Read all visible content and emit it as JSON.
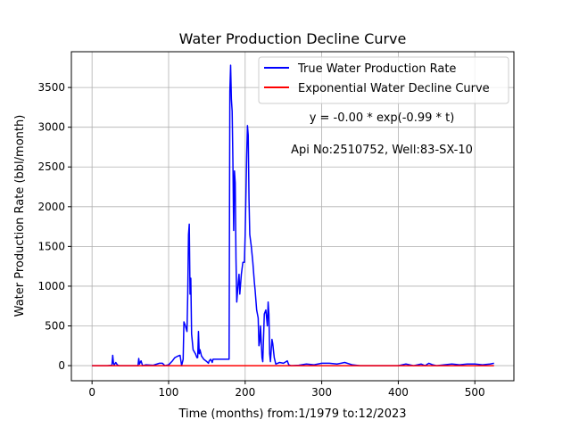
{
  "chart_data": {
    "type": "line",
    "title": "Water Production Decline Curve",
    "xlabel": "Time (months) from:1/1979 to:12/2023",
    "ylabel": "Water Production Rate (bbl/month)",
    "xlim": [
      -27,
      551
    ],
    "ylim": [
      -190,
      3950
    ],
    "xticks": [
      0,
      100,
      200,
      300,
      400,
      500
    ],
    "yticks": [
      0,
      500,
      1000,
      1500,
      2000,
      2500,
      3000,
      3500
    ],
    "grid": true,
    "legend_position": "top-right",
    "annotations": [
      "y = -0.00 * exp(-0.99 * t)",
      "Api No:2510752, Well:83-SX-10"
    ],
    "series": [
      {
        "name": "True Water Production Rate",
        "color": "#0000ff",
        "points": [
          [
            0,
            0
          ],
          [
            10,
            0
          ],
          [
            20,
            0
          ],
          [
            26,
            5
          ],
          [
            27,
            130
          ],
          [
            28,
            30
          ],
          [
            29,
            10
          ],
          [
            31,
            40
          ],
          [
            33,
            10
          ],
          [
            35,
            0
          ],
          [
            50,
            0
          ],
          [
            60,
            0
          ],
          [
            61,
            90
          ],
          [
            62,
            20
          ],
          [
            64,
            60
          ],
          [
            66,
            0
          ],
          [
            70,
            10
          ],
          [
            80,
            5
          ],
          [
            88,
            30
          ],
          [
            92,
            30
          ],
          [
            95,
            0
          ],
          [
            100,
            10
          ],
          [
            105,
            60
          ],
          [
            108,
            100
          ],
          [
            112,
            120
          ],
          [
            115,
            130
          ],
          [
            117,
            0
          ],
          [
            119,
            80
          ],
          [
            120,
            550
          ],
          [
            122,
            500
          ],
          [
            124,
            430
          ],
          [
            125,
            900
          ],
          [
            126,
            1650
          ],
          [
            127,
            1780
          ],
          [
            128,
            900
          ],
          [
            129,
            1100
          ],
          [
            130,
            400
          ],
          [
            132,
            200
          ],
          [
            135,
            150
          ],
          [
            137,
            100
          ],
          [
            138,
            100
          ],
          [
            139,
            430
          ],
          [
            140,
            150
          ],
          [
            141,
            200
          ],
          [
            143,
            120
          ],
          [
            146,
            80
          ],
          [
            150,
            50
          ],
          [
            152,
            30
          ],
          [
            153,
            60
          ],
          [
            155,
            80
          ],
          [
            157,
            40
          ],
          [
            158,
            80
          ],
          [
            162,
            80
          ],
          [
            165,
            80
          ],
          [
            170,
            80
          ],
          [
            175,
            80
          ],
          [
            179,
            80
          ],
          [
            180,
            3450
          ],
          [
            181,
            3780
          ],
          [
            182,
            3350
          ],
          [
            183,
            3200
          ],
          [
            184,
            2550
          ],
          [
            185,
            1700
          ],
          [
            186,
            2450
          ],
          [
            187,
            2300
          ],
          [
            188,
            1350
          ],
          [
            189,
            800
          ],
          [
            191,
            1050
          ],
          [
            192,
            1150
          ],
          [
            193,
            900
          ],
          [
            195,
            1150
          ],
          [
            197,
            1300
          ],
          [
            199,
            1300
          ],
          [
            200,
            1650
          ],
          [
            202,
            2650
          ],
          [
            203,
            3020
          ],
          [
            204,
            2900
          ],
          [
            205,
            2100
          ],
          [
            206,
            1650
          ],
          [
            208,
            1500
          ],
          [
            210,
            1300
          ],
          [
            212,
            1050
          ],
          [
            213,
            950
          ],
          [
            215,
            700
          ],
          [
            217,
            600
          ],
          [
            218,
            250
          ],
          [
            219,
            300
          ],
          [
            220,
            500
          ],
          [
            222,
            100
          ],
          [
            223,
            50
          ],
          [
            225,
            650
          ],
          [
            227,
            700
          ],
          [
            229,
            500
          ],
          [
            230,
            800
          ],
          [
            231,
            650
          ],
          [
            232,
            150
          ],
          [
            233,
            50
          ],
          [
            235,
            330
          ],
          [
            236,
            280
          ],
          [
            238,
            100
          ],
          [
            240,
            20
          ],
          [
            245,
            40
          ],
          [
            250,
            30
          ],
          [
            255,
            60
          ],
          [
            257,
            10
          ],
          [
            260,
            0
          ],
          [
            270,
            5
          ],
          [
            280,
            20
          ],
          [
            290,
            10
          ],
          [
            300,
            30
          ],
          [
            310,
            30
          ],
          [
            320,
            20
          ],
          [
            330,
            40
          ],
          [
            340,
            10
          ],
          [
            350,
            0
          ],
          [
            360,
            0
          ],
          [
            380,
            0
          ],
          [
            400,
            0
          ],
          [
            410,
            20
          ],
          [
            420,
            0
          ],
          [
            430,
            20
          ],
          [
            435,
            0
          ],
          [
            440,
            30
          ],
          [
            445,
            10
          ],
          [
            450,
            0
          ],
          [
            460,
            10
          ],
          [
            470,
            20
          ],
          [
            480,
            10
          ],
          [
            490,
            20
          ],
          [
            500,
            20
          ],
          [
            510,
            10
          ],
          [
            520,
            20
          ],
          [
            525,
            30
          ]
        ]
      },
      {
        "name": "Exponential Water Decline Curve",
        "color": "#ff0000",
        "points": [
          [
            0,
            0
          ],
          [
            525,
            0
          ]
        ]
      }
    ]
  }
}
